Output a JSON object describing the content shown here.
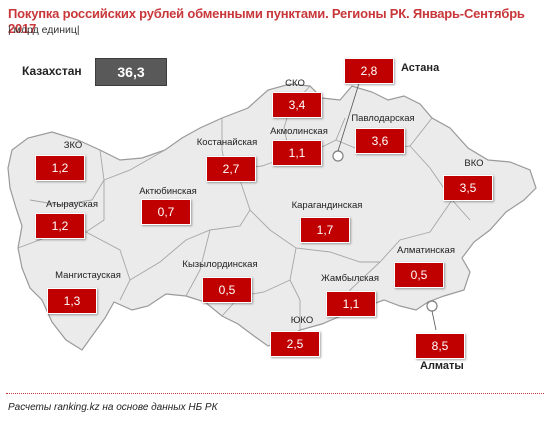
{
  "title": "Покупка российских рублей обменными пунктами. Регионы РК. Январь-Сентябрь 2017",
  "subtitle": "| млрд единиц|",
  "total": {
    "label": "Казахстан",
    "value": "36,3"
  },
  "regions": [
    {
      "name": "ЗКО",
      "value": "1,2"
    },
    {
      "name": "Атырауская",
      "value": "1,2"
    },
    {
      "name": "Мангистауская",
      "value": "1,3"
    },
    {
      "name": "Актюбинская",
      "value": "0,7"
    },
    {
      "name": "Костанайская",
      "value": "2,7"
    },
    {
      "name": "СКО",
      "value": "3,4"
    },
    {
      "name": "Акмолинская",
      "value": "1,1"
    },
    {
      "name": "Павлодарская",
      "value": "3,6"
    },
    {
      "name": "ВКО",
      "value": "3,5"
    },
    {
      "name": "Карагандинская",
      "value": "1,7"
    },
    {
      "name": "Кызылординская",
      "value": "0,5"
    },
    {
      "name": "Жамбылская",
      "value": "1,1"
    },
    {
      "name": "Алматинская",
      "value": "0,5"
    },
    {
      "name": "ЮКО",
      "value": "2,5"
    }
  ],
  "cities": [
    {
      "name": "Астана",
      "value": "2,8"
    },
    {
      "name": "Алматы",
      "value": "8,5"
    }
  ],
  "colors": {
    "title": "#c8373a",
    "value_box": "#c00000",
    "total_box": "#595959",
    "land": "#ebebeb",
    "border": "#a6a6a6"
  },
  "footer": "Расчеты ranking.kz на основе данных НБ РК"
}
